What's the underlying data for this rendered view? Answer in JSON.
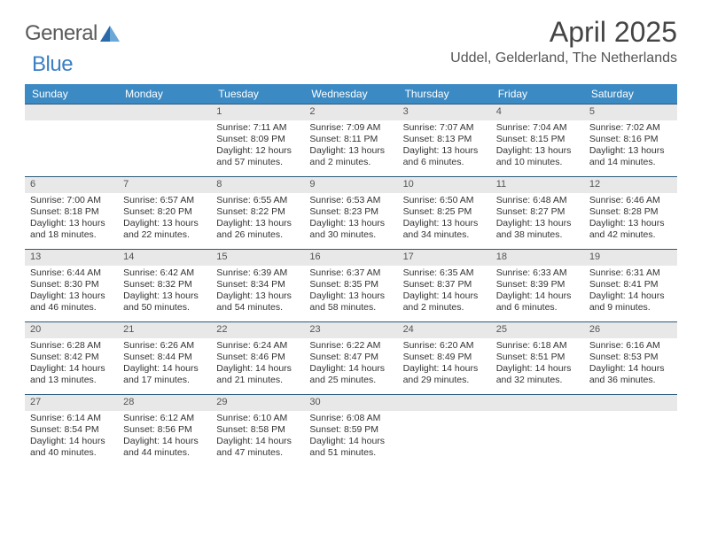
{
  "brand": {
    "part1": "General",
    "part2": "Blue"
  },
  "title": "April 2025",
  "location": "Uddel, Gelderland, The Netherlands",
  "colors": {
    "header_bg": "#3b8ac4",
    "header_text": "#ffffff",
    "row_border": "#2a5a7a",
    "daynum_bg": "#e8e8e8",
    "body_text": "#333333",
    "brand_gray": "#5a5a5a",
    "brand_blue": "#3b7fc4"
  },
  "daysOfWeek": [
    "Sunday",
    "Monday",
    "Tuesday",
    "Wednesday",
    "Thursday",
    "Friday",
    "Saturday"
  ],
  "weeks": [
    [
      null,
      null,
      {
        "n": "1",
        "sr": "7:11 AM",
        "ss": "8:09 PM",
        "dl": "12 hours and 57 minutes."
      },
      {
        "n": "2",
        "sr": "7:09 AM",
        "ss": "8:11 PM",
        "dl": "13 hours and 2 minutes."
      },
      {
        "n": "3",
        "sr": "7:07 AM",
        "ss": "8:13 PM",
        "dl": "13 hours and 6 minutes."
      },
      {
        "n": "4",
        "sr": "7:04 AM",
        "ss": "8:15 PM",
        "dl": "13 hours and 10 minutes."
      },
      {
        "n": "5",
        "sr": "7:02 AM",
        "ss": "8:16 PM",
        "dl": "13 hours and 14 minutes."
      }
    ],
    [
      {
        "n": "6",
        "sr": "7:00 AM",
        "ss": "8:18 PM",
        "dl": "13 hours and 18 minutes."
      },
      {
        "n": "7",
        "sr": "6:57 AM",
        "ss": "8:20 PM",
        "dl": "13 hours and 22 minutes."
      },
      {
        "n": "8",
        "sr": "6:55 AM",
        "ss": "8:22 PM",
        "dl": "13 hours and 26 minutes."
      },
      {
        "n": "9",
        "sr": "6:53 AM",
        "ss": "8:23 PM",
        "dl": "13 hours and 30 minutes."
      },
      {
        "n": "10",
        "sr": "6:50 AM",
        "ss": "8:25 PM",
        "dl": "13 hours and 34 minutes."
      },
      {
        "n": "11",
        "sr": "6:48 AM",
        "ss": "8:27 PM",
        "dl": "13 hours and 38 minutes."
      },
      {
        "n": "12",
        "sr": "6:46 AM",
        "ss": "8:28 PM",
        "dl": "13 hours and 42 minutes."
      }
    ],
    [
      {
        "n": "13",
        "sr": "6:44 AM",
        "ss": "8:30 PM",
        "dl": "13 hours and 46 minutes."
      },
      {
        "n": "14",
        "sr": "6:42 AM",
        "ss": "8:32 PM",
        "dl": "13 hours and 50 minutes."
      },
      {
        "n": "15",
        "sr": "6:39 AM",
        "ss": "8:34 PM",
        "dl": "13 hours and 54 minutes."
      },
      {
        "n": "16",
        "sr": "6:37 AM",
        "ss": "8:35 PM",
        "dl": "13 hours and 58 minutes."
      },
      {
        "n": "17",
        "sr": "6:35 AM",
        "ss": "8:37 PM",
        "dl": "14 hours and 2 minutes."
      },
      {
        "n": "18",
        "sr": "6:33 AM",
        "ss": "8:39 PM",
        "dl": "14 hours and 6 minutes."
      },
      {
        "n": "19",
        "sr": "6:31 AM",
        "ss": "8:41 PM",
        "dl": "14 hours and 9 minutes."
      }
    ],
    [
      {
        "n": "20",
        "sr": "6:28 AM",
        "ss": "8:42 PM",
        "dl": "14 hours and 13 minutes."
      },
      {
        "n": "21",
        "sr": "6:26 AM",
        "ss": "8:44 PM",
        "dl": "14 hours and 17 minutes."
      },
      {
        "n": "22",
        "sr": "6:24 AM",
        "ss": "8:46 PM",
        "dl": "14 hours and 21 minutes."
      },
      {
        "n": "23",
        "sr": "6:22 AM",
        "ss": "8:47 PM",
        "dl": "14 hours and 25 minutes."
      },
      {
        "n": "24",
        "sr": "6:20 AM",
        "ss": "8:49 PM",
        "dl": "14 hours and 29 minutes."
      },
      {
        "n": "25",
        "sr": "6:18 AM",
        "ss": "8:51 PM",
        "dl": "14 hours and 32 minutes."
      },
      {
        "n": "26",
        "sr": "6:16 AM",
        "ss": "8:53 PM",
        "dl": "14 hours and 36 minutes."
      }
    ],
    [
      {
        "n": "27",
        "sr": "6:14 AM",
        "ss": "8:54 PM",
        "dl": "14 hours and 40 minutes."
      },
      {
        "n": "28",
        "sr": "6:12 AM",
        "ss": "8:56 PM",
        "dl": "14 hours and 44 minutes."
      },
      {
        "n": "29",
        "sr": "6:10 AM",
        "ss": "8:58 PM",
        "dl": "14 hours and 47 minutes."
      },
      {
        "n": "30",
        "sr": "6:08 AM",
        "ss": "8:59 PM",
        "dl": "14 hours and 51 minutes."
      },
      null,
      null,
      null
    ]
  ],
  "labels": {
    "sunrise": "Sunrise:",
    "sunset": "Sunset:",
    "daylight": "Daylight:"
  }
}
